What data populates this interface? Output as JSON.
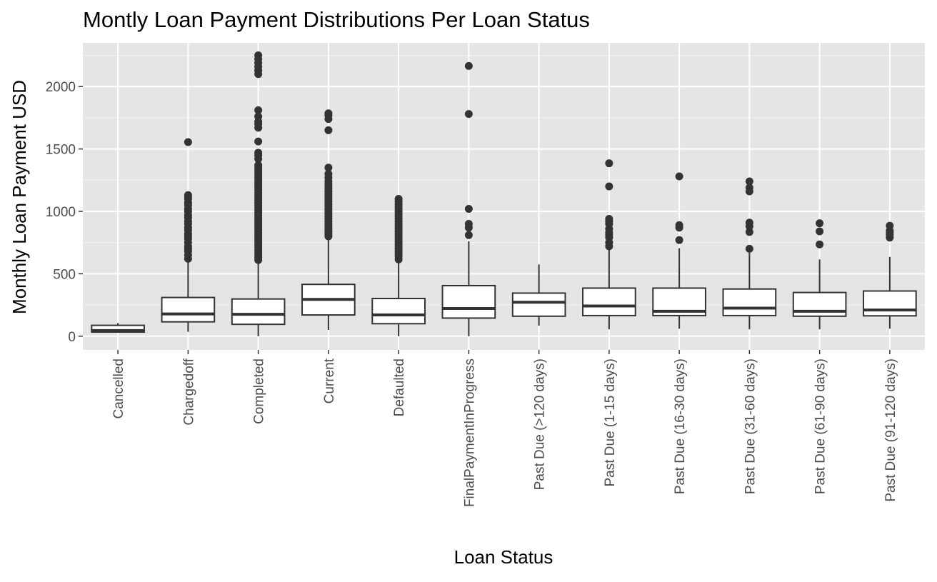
{
  "chart_data": {
    "type": "boxplot",
    "title": "Montly Loan Payment Distributions Per Loan Status",
    "xlabel": "Loan Status",
    "ylabel": "Monthly Loan Payment USD",
    "ylim": [
      -110,
      2350
    ],
    "yticks": [
      0,
      500,
      1000,
      1500,
      2000
    ],
    "grid": true,
    "colors": {
      "panel_bg": "#e5e5e5",
      "grid_major": "#ffffff",
      "grid_minor": "#f2f2f2",
      "box_fill": "#ffffff",
      "box_stroke": "#333333",
      "outlier": "#333333",
      "text": "#000000",
      "tick_text": "#4d4d4d"
    },
    "categories": [
      "Cancelled",
      "Chargedoff",
      "Completed",
      "Current",
      "Defaulted",
      "FinalPaymentInProgress",
      "Past Due (>120 days)",
      "Past Due (1-15 days)",
      "Past Due (16-30 days)",
      "Past Due (31-60 days)",
      "Past Due (61-90 days)",
      "Past Due (91-120 days)"
    ],
    "boxes": [
      {
        "min": 30,
        "q1": 33,
        "median": 45,
        "q3": 87,
        "max": 105,
        "outliers": []
      },
      {
        "min": 35,
        "q1": 115,
        "median": 178,
        "q3": 310,
        "max": 600,
        "outliers": [
          620,
          650,
          680,
          700,
          720,
          750,
          780,
          800,
          820,
          850,
          870,
          900,
          920,
          950,
          970,
          1000,
          1020,
          1050,
          1070,
          1100,
          1120,
          1130,
          1555
        ]
      },
      {
        "min": 0,
        "q1": 95,
        "median": 175,
        "q3": 298,
        "max": 600,
        "outliers": [
          610,
          630,
          650,
          670,
          690,
          710,
          730,
          750,
          770,
          790,
          810,
          830,
          850,
          870,
          890,
          910,
          930,
          950,
          970,
          990,
          1010,
          1030,
          1050,
          1070,
          1090,
          1110,
          1130,
          1150,
          1170,
          1190,
          1210,
          1230,
          1250,
          1270,
          1290,
          1310,
          1330,
          1350,
          1370,
          1420,
          1450,
          1470,
          1560,
          1670,
          1700,
          1720,
          1760,
          1810,
          2100,
          2130,
          2160,
          2190,
          2220,
          2250
        ]
      },
      {
        "min": 50,
        "q1": 170,
        "median": 295,
        "q3": 415,
        "max": 785,
        "outliers": [
          800,
          820,
          840,
          860,
          880,
          900,
          920,
          940,
          960,
          980,
          1000,
          1020,
          1040,
          1060,
          1080,
          1100,
          1120,
          1140,
          1160,
          1180,
          1200,
          1220,
          1240,
          1270,
          1300,
          1350,
          1650,
          1740,
          1770,
          1785
        ]
      },
      {
        "min": 0,
        "q1": 100,
        "median": 170,
        "q3": 302,
        "max": 600,
        "outliers": [
          615,
          640,
          660,
          680,
          700,
          720,
          740,
          760,
          780,
          800,
          820,
          840,
          860,
          880,
          900,
          920,
          940,
          960,
          980,
          1000,
          1020,
          1040,
          1060,
          1080,
          1100
        ]
      },
      {
        "min": 0,
        "q1": 145,
        "median": 222,
        "q3": 405,
        "max": 760,
        "outliers": [
          810,
          870,
          900,
          1020,
          1780,
          2165
        ]
      },
      {
        "min": 85,
        "q1": 160,
        "median": 272,
        "q3": 345,
        "max": 575,
        "outliers": []
      },
      {
        "min": 55,
        "q1": 165,
        "median": 242,
        "q3": 385,
        "max": 700,
        "outliers": [
          720,
          750,
          790,
          810,
          830,
          860,
          900,
          920,
          940,
          1200,
          1385
        ]
      },
      {
        "min": 60,
        "q1": 165,
        "median": 200,
        "q3": 385,
        "max": 705,
        "outliers": [
          770,
          870,
          890,
          1280
        ]
      },
      {
        "min": 55,
        "q1": 165,
        "median": 225,
        "q3": 378,
        "max": 670,
        "outliers": [
          700,
          835,
          880,
          910,
          1160,
          1190,
          1240
        ]
      },
      {
        "min": 55,
        "q1": 160,
        "median": 200,
        "q3": 350,
        "max": 615,
        "outliers": [
          735,
          840,
          905
        ]
      },
      {
        "min": 60,
        "q1": 163,
        "median": 210,
        "q3": 362,
        "max": 635,
        "outliers": [
          790,
          810,
          830,
          845,
          885
        ]
      }
    ]
  }
}
